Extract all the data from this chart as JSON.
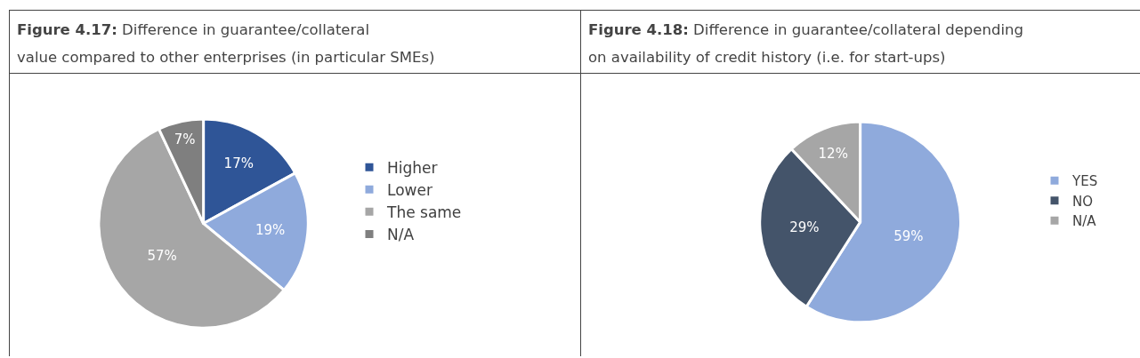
{
  "chart_data": [
    {
      "type": "pie",
      "title": "Figure 4.17: Difference in guarantee/collateral value compared to other enterprises (in particular SMEs)",
      "categories": [
        "Higher",
        "Lower",
        "The same",
        "N/A"
      ],
      "values": [
        17,
        19,
        57,
        7
      ],
      "colors": [
        "#2f5597",
        "#8faadc",
        "#a6a6a6",
        "#7f7f7f"
      ],
      "value_labels": [
        "17%",
        "19%",
        "57%",
        "7%"
      ],
      "legend": "right"
    },
    {
      "type": "pie",
      "title": "Figure 4.18: Difference in guarantee/collateral depending on availability of credit history (i.e. for start-ups)",
      "categories": [
        "YES",
        "NO",
        "N/A"
      ],
      "values": [
        59,
        29,
        12
      ],
      "colors": [
        "#8faadc",
        "#44546a",
        "#a6a6a6"
      ],
      "value_labels": [
        "59%",
        "29%",
        "12%"
      ],
      "legend": "right"
    }
  ]
}
